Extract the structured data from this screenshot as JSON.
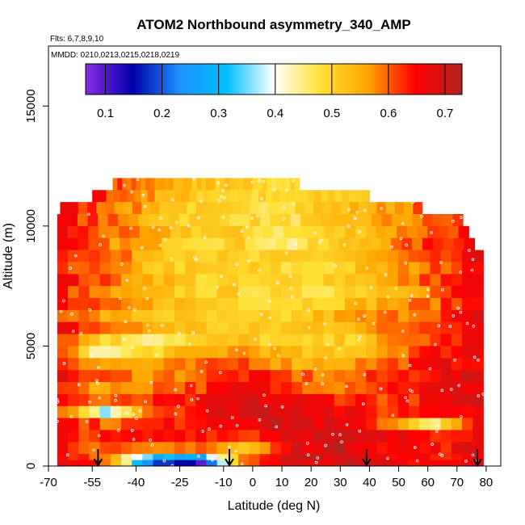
{
  "chart_data": {
    "type": "heatmap",
    "title": "ATOM2 Northbound asymmetry_340_AMP",
    "subtitle_flights": "Flts: 6,7,8,9,10",
    "subtitle_dates": "MMDD: 0210,0213,0215,0218,0219",
    "xlabel": "Latitude (deg N)",
    "ylabel": "Altitude (m)",
    "xlim": [
      -70,
      85
    ],
    "ylim": [
      0,
      17500
    ],
    "xticks": [
      -70,
      -55,
      -40,
      -25,
      -10,
      0,
      10,
      20,
      30,
      40,
      50,
      60,
      70,
      80
    ],
    "xtick_labels": [
      "-70",
      "-55",
      "-40",
      "-25",
      "-10",
      "0",
      "10",
      "20",
      "30",
      "40",
      "50",
      "60",
      "70",
      "80"
    ],
    "yticks": [
      0,
      5000,
      10000,
      15000
    ],
    "ytick_labels": [
      "0",
      "5000",
      "10000",
      "15000"
    ],
    "colorbar": {
      "min": 0.065,
      "max": 0.73,
      "ticks": [
        0.1,
        0.2,
        0.3,
        0.4,
        0.5,
        0.6,
        0.7
      ],
      "tick_labels": [
        "0.1",
        "0.2",
        "0.3",
        "0.4",
        "0.5",
        "0.6",
        "0.7"
      ],
      "colors": [
        "#8a2be2",
        "#0000a8",
        "#1e90ff",
        "#00bfff",
        "#ffffff",
        "#ffe135",
        "#ffa500",
        "#ff0000",
        "#b22222"
      ]
    },
    "profile_markers_lat": [
      -53,
      -8,
      39,
      77
    ],
    "altitude_bins": [
      {
        "top": 12000,
        "xmin": -48,
        "xmax": 16,
        "v": [
          0.62,
          0.56,
          0.52,
          0.5,
          0.48
        ]
      },
      {
        "top": 11500,
        "xmin": -55,
        "xmax": 40,
        "v": [
          0.64,
          0.58,
          0.52,
          0.5,
          0.48,
          0.5,
          0.52
        ]
      },
      {
        "top": 11000,
        "xmin": -66,
        "xmax": 58,
        "v": [
          0.66,
          0.6,
          0.55,
          0.5,
          0.48,
          0.5,
          0.52,
          0.55,
          0.6
        ]
      },
      {
        "top": 10500,
        "xmin": -67,
        "xmax": 72,
        "v": [
          0.65,
          0.6,
          0.54,
          0.5,
          0.5,
          0.48,
          0.5,
          0.55,
          0.58,
          0.62
        ]
      },
      {
        "top": 10000,
        "xmin": -67,
        "xmax": 74,
        "v": [
          0.66,
          0.6,
          0.55,
          0.52,
          0.5,
          0.47,
          0.5,
          0.55,
          0.6,
          0.64
        ]
      },
      {
        "top": 9500,
        "xmin": -67,
        "xmax": 76,
        "v": [
          0.65,
          0.58,
          0.55,
          0.5,
          0.5,
          0.45,
          0.5,
          0.56,
          0.62,
          0.66
        ]
      },
      {
        "top": 9000,
        "xmin": -67,
        "xmax": 79,
        "v": [
          0.66,
          0.6,
          0.54,
          0.52,
          0.48,
          0.5,
          0.52,
          0.56,
          0.6,
          0.66
        ]
      },
      {
        "top": 8500,
        "xmin": -67,
        "xmax": 79,
        "v": [
          0.64,
          0.58,
          0.52,
          0.5,
          0.5,
          0.48,
          0.5,
          0.55,
          0.6,
          0.68
        ]
      },
      {
        "top": 8000,
        "xmin": -67,
        "xmax": 79,
        "v": [
          0.66,
          0.6,
          0.55,
          0.5,
          0.48,
          0.5,
          0.52,
          0.55,
          0.62,
          0.66
        ]
      },
      {
        "top": 7500,
        "xmin": -67,
        "xmax": 79,
        "v": [
          0.64,
          0.56,
          0.52,
          0.5,
          0.5,
          0.47,
          0.5,
          0.54,
          0.6,
          0.67
        ]
      },
      {
        "top": 7000,
        "xmin": -67,
        "xmax": 79,
        "v": [
          0.65,
          0.58,
          0.55,
          0.52,
          0.5,
          0.5,
          0.52,
          0.56,
          0.6,
          0.65
        ]
      },
      {
        "top": 6500,
        "xmin": -67,
        "xmax": 79,
        "v": [
          0.63,
          0.55,
          0.52,
          0.5,
          0.48,
          0.5,
          0.55,
          0.58,
          0.62,
          0.68
        ]
      },
      {
        "top": 6000,
        "xmin": -67,
        "xmax": 79,
        "v": [
          0.66,
          0.6,
          0.55,
          0.52,
          0.5,
          0.52,
          0.54,
          0.58,
          0.64,
          0.67
        ]
      },
      {
        "top": 5500,
        "xmin": -67,
        "xmax": 79,
        "v": [
          0.64,
          0.5,
          0.46,
          0.5,
          0.52,
          0.48,
          0.5,
          0.56,
          0.62,
          0.66
        ]
      },
      {
        "top": 5000,
        "xmin": -67,
        "xmax": 79,
        "v": [
          0.62,
          0.42,
          0.5,
          0.54,
          0.58,
          0.52,
          0.5,
          0.58,
          0.64,
          0.68
        ]
      },
      {
        "top": 4500,
        "xmin": -67,
        "xmax": 79,
        "v": [
          0.65,
          0.56,
          0.55,
          0.58,
          0.62,
          0.55,
          0.56,
          0.6,
          0.65,
          0.67
        ]
      },
      {
        "top": 4000,
        "xmin": -67,
        "xmax": 79,
        "v": [
          0.66,
          0.6,
          0.58,
          0.6,
          0.64,
          0.6,
          0.58,
          0.62,
          0.66,
          0.68
        ]
      },
      {
        "top": 3500,
        "xmin": -67,
        "xmax": 79,
        "v": [
          0.65,
          0.55,
          0.6,
          0.62,
          0.66,
          0.62,
          0.6,
          0.64,
          0.66,
          0.68
        ]
      },
      {
        "top": 3000,
        "xmin": -67,
        "xmax": 79,
        "v": [
          0.66,
          0.58,
          0.62,
          0.64,
          0.68,
          0.66,
          0.64,
          0.62,
          0.65,
          0.68
        ]
      },
      {
        "top": 2500,
        "xmin": -67,
        "xmax": 79,
        "v": [
          0.64,
          0.38,
          0.62,
          0.65,
          0.7,
          0.7,
          0.66,
          0.62,
          0.66,
          0.68
        ]
      },
      {
        "top": 2000,
        "xmin": -67,
        "xmax": 79,
        "v": [
          0.66,
          0.6,
          0.62,
          0.66,
          0.68,
          0.7,
          0.66,
          0.6,
          0.45,
          0.68
        ]
      },
      {
        "top": 1500,
        "xmin": -67,
        "xmax": 79,
        "v": [
          0.65,
          0.62,
          0.64,
          0.66,
          0.62,
          0.7,
          0.68,
          0.66,
          0.65,
          0.67
        ]
      },
      {
        "top": 1000,
        "xmin": -67,
        "xmax": 79,
        "v": [
          0.66,
          0.6,
          0.55,
          0.62,
          0.5,
          0.68,
          0.7,
          0.66,
          0.64,
          0.68
        ]
      },
      {
        "top": 500,
        "xmin": -67,
        "xmax": 79,
        "v": [
          0.66,
          0.6,
          0.3,
          0.28,
          0.6,
          0.68,
          0.7,
          0.66,
          0.64,
          0.68
        ]
      },
      {
        "top": 250,
        "xmin": -67,
        "xmax": 79,
        "v": [
          0.66,
          0.62,
          0.2,
          0.1,
          0.62,
          0.68,
          0.7,
          0.66,
          0.64,
          0.68
        ]
      }
    ]
  }
}
